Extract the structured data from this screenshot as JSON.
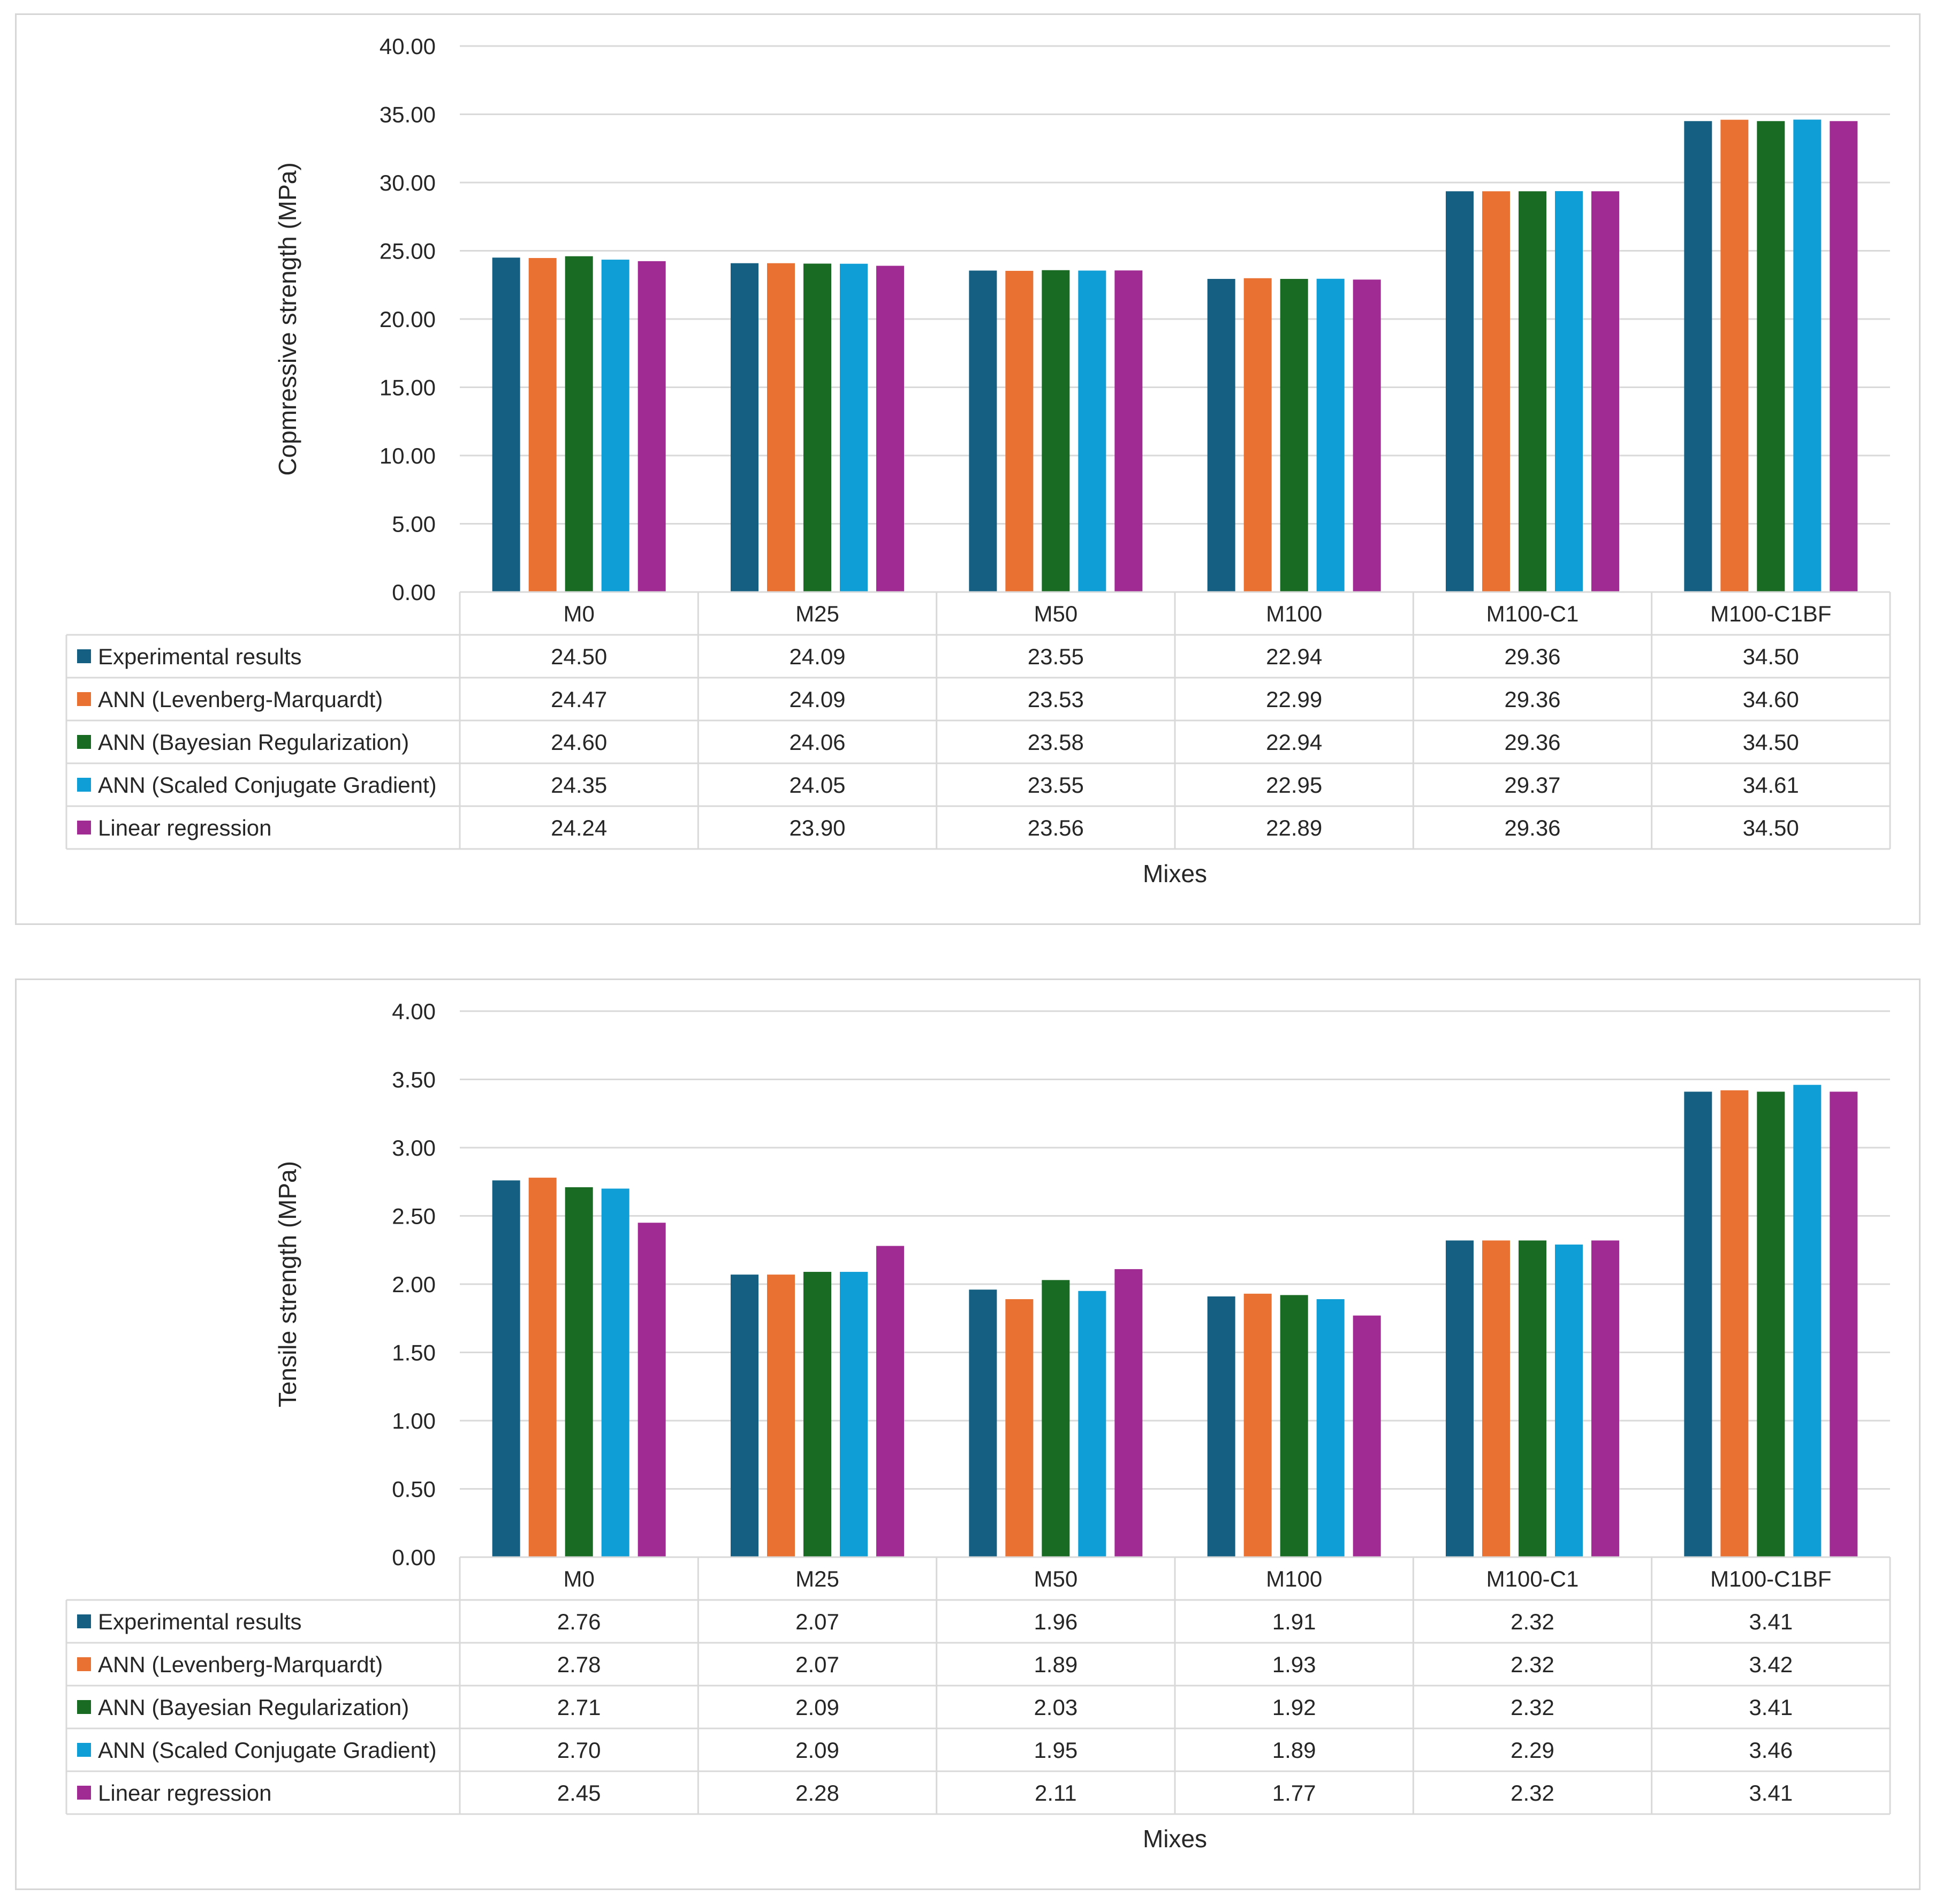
{
  "colors": {
    "experimental": "#156082",
    "lm": "#e97132",
    "br": "#196b24",
    "scg": "#0f9ed5",
    "lr": "#a02b93",
    "grid": "#d9d9d9",
    "text": "#262626"
  },
  "chart_data": [
    {
      "type": "bar",
      "categories": [
        "M0",
        "M25",
        "M50",
        "M100",
        "M100-C1",
        "M100-C1BF"
      ],
      "ylabel": "Copmressive strength (MPa)",
      "xlabel": "Mixes",
      "ylim": [
        0,
        40
      ],
      "yticks": [
        "0.00",
        "5.00",
        "10.00",
        "15.00",
        "20.00",
        "25.00",
        "30.00",
        "35.00",
        "40.00"
      ],
      "series": [
        {
          "name": "Experimental results",
          "color": "#156082",
          "values": [
            24.5,
            24.09,
            23.55,
            22.94,
            29.36,
            34.5
          ],
          "labels": [
            "24.50",
            "24.09",
            "23.55",
            "22.94",
            "29.36",
            "34.50"
          ]
        },
        {
          "name": "ANN (Levenberg-Marquardt)",
          "color": "#e97132",
          "values": [
            24.47,
            24.09,
            23.53,
            22.99,
            29.36,
            34.6
          ],
          "labels": [
            "24.47",
            "24.09",
            "23.53",
            "22.99",
            "29.36",
            "34.60"
          ]
        },
        {
          "name": "ANN (Bayesian Regularization)",
          "color": "#196b24",
          "values": [
            24.6,
            24.06,
            23.58,
            22.94,
            29.36,
            34.5
          ],
          "labels": [
            "24.60",
            "24.06",
            "23.58",
            "22.94",
            "29.36",
            "34.50"
          ]
        },
        {
          "name": "ANN (Scaled Conjugate Gradient)",
          "color": "#0f9ed5",
          "values": [
            24.35,
            24.05,
            23.55,
            22.95,
            29.37,
            34.61
          ],
          "labels": [
            "24.35",
            "24.05",
            "23.55",
            "22.95",
            "29.37",
            "34.61"
          ]
        },
        {
          "name": "Linear regression",
          "color": "#a02b93",
          "values": [
            24.24,
            23.9,
            23.56,
            22.89,
            29.36,
            34.5
          ],
          "labels": [
            "24.24",
            "23.90",
            "23.56",
            "22.89",
            "29.36",
            "34.50"
          ]
        }
      ]
    },
    {
      "type": "bar",
      "categories": [
        "M0",
        "M25",
        "M50",
        "M100",
        "M100-C1",
        "M100-C1BF"
      ],
      "ylabel": "Tensile strength (MPa)",
      "xlabel": "Mixes",
      "ylim": [
        0,
        4
      ],
      "yticks": [
        "0.00",
        "0.50",
        "1.00",
        "1.50",
        "2.00",
        "2.50",
        "3.00",
        "3.50",
        "4.00"
      ],
      "series": [
        {
          "name": "Experimental results",
          "color": "#156082",
          "values": [
            2.76,
            2.07,
            1.96,
            1.91,
            2.32,
            3.41
          ],
          "labels": [
            "2.76",
            "2.07",
            "1.96",
            "1.91",
            "2.32",
            "3.41"
          ]
        },
        {
          "name": "ANN (Levenberg-Marquardt)",
          "color": "#e97132",
          "values": [
            2.78,
            2.07,
            1.89,
            1.93,
            2.32,
            3.42
          ],
          "labels": [
            "2.78",
            "2.07",
            "1.89",
            "1.93",
            "2.32",
            "3.42"
          ]
        },
        {
          "name": "ANN (Bayesian Regularization)",
          "color": "#196b24",
          "values": [
            2.71,
            2.09,
            2.03,
            1.92,
            2.32,
            3.41
          ],
          "labels": [
            "2.71",
            "2.09",
            "2.03",
            "1.92",
            "2.32",
            "3.41"
          ]
        },
        {
          "name": "ANN (Scaled Conjugate Gradient)",
          "color": "#0f9ed5",
          "values": [
            2.7,
            2.09,
            1.95,
            1.89,
            2.29,
            3.46
          ],
          "labels": [
            "2.70",
            "2.09",
            "1.95",
            "1.89",
            "2.29",
            "3.46"
          ]
        },
        {
          "name": "Linear regression",
          "color": "#a02b93",
          "values": [
            2.45,
            2.28,
            2.11,
            1.77,
            2.32,
            3.41
          ],
          "labels": [
            "2.45",
            "2.28",
            "2.11",
            "1.77",
            "2.32",
            "3.41"
          ]
        }
      ]
    }
  ]
}
